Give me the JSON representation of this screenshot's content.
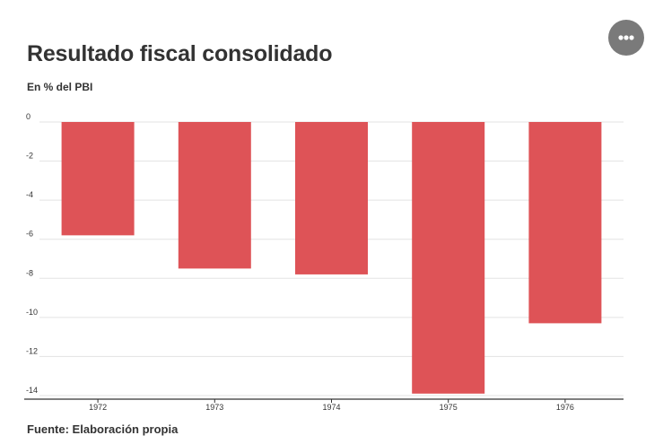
{
  "header": {
    "title": "Resultado fiscal consolidado",
    "subtitle": "En % del PBI"
  },
  "footer": {
    "source": "Fuente: Elaboración propia"
  },
  "menu": {
    "icon": "more-horizontal-icon"
  },
  "chart_data": {
    "type": "bar",
    "categories": [
      "1972",
      "1973",
      "1974",
      "1975",
      "1976"
    ],
    "values": [
      -5.8,
      -7.5,
      -7.8,
      -13.9,
      -10.3
    ],
    "ylim": [
      -14,
      0
    ],
    "yticks": [
      0,
      -2,
      -4,
      -6,
      -8,
      -10,
      -12,
      -14
    ],
    "ytick_labels": [
      "0",
      "-2",
      "-4",
      "-6",
      "-8",
      "-10",
      "-12",
      "-14"
    ],
    "bar_color": "#de5357",
    "grid": true,
    "legend": "none"
  }
}
